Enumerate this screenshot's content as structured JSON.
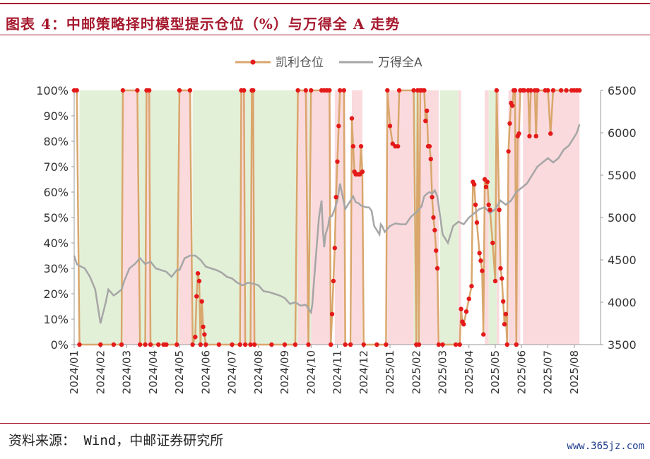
{
  "header": {
    "title": "图表 4：中邮策略择时模型提示仓位（%）与万得全 A 走势"
  },
  "footer": {
    "source": "资料来源：  Wind，中邮证券研究所",
    "watermark": "www.365jz.com"
  },
  "colors": {
    "position_line": "#d9a66c",
    "position_dot": "#e41a1a",
    "index_line": "#a6a6a6",
    "bull_zone": "#fadadd",
    "bear_zone": "#e3f0d8",
    "brand": "#a6192e"
  },
  "chart_data": {
    "type": "line",
    "title": "",
    "grid": false,
    "legend_position": "top-center",
    "x_ticks": [
      "2024/01",
      "2024/02",
      "2024/03",
      "2024/04",
      "2024/05",
      "2024/06",
      "2024/07",
      "2024/08",
      "2024/09",
      "2024/10",
      "2024/11",
      "2024/12",
      "2025/01",
      "2025/02",
      "2025/03",
      "2025/04",
      "2025/05",
      "2025/06",
      "2025/07",
      "2025/08"
    ],
    "x_range": [
      "2024/01",
      "2025/08 end"
    ],
    "y_left": {
      "ticks": [
        "0%",
        "10%",
        "20%",
        "30%",
        "40%",
        "50%",
        "60%",
        "70%",
        "80%",
        "90%",
        "100%"
      ],
      "range": [
        0,
        100
      ]
    },
    "y_right": {
      "ticks": [
        "3500",
        "4000",
        "4500",
        "5000",
        "5500",
        "6000",
        "6500"
      ],
      "range": [
        3500,
        6500
      ]
    },
    "series": [
      {
        "name": "凯利仓位",
        "axis": "left",
        "points": [
          [
            0,
            100
          ],
          [
            0.1,
            100
          ],
          [
            0.2,
            0
          ],
          [
            1,
            0
          ],
          [
            1.5,
            0
          ],
          [
            1.8,
            0
          ],
          [
            1.85,
            100
          ],
          [
            2.4,
            100
          ],
          [
            2.5,
            0
          ],
          [
            2.7,
            0
          ],
          [
            2.75,
            100
          ],
          [
            2.85,
            100
          ],
          [
            2.9,
            0
          ],
          [
            3.2,
            0
          ],
          [
            3.4,
            0
          ],
          [
            3.5,
            0
          ],
          [
            3.9,
            0
          ],
          [
            4.0,
            100
          ],
          [
            4.4,
            100
          ],
          [
            4.5,
            0
          ],
          [
            4.6,
            3
          ],
          [
            4.65,
            19
          ],
          [
            4.7,
            28
          ],
          [
            4.75,
            25
          ],
          [
            4.8,
            0
          ],
          [
            4.85,
            17
          ],
          [
            4.9,
            7
          ],
          [
            4.95,
            4
          ],
          [
            5.0,
            0
          ],
          [
            5.5,
            0
          ],
          [
            6.0,
            0
          ],
          [
            6.3,
            0
          ],
          [
            6.35,
            100
          ],
          [
            6.45,
            100
          ],
          [
            6.5,
            0
          ],
          [
            6.7,
            0
          ],
          [
            6.75,
            100
          ],
          [
            6.8,
            100
          ],
          [
            6.85,
            0
          ],
          [
            7.5,
            0
          ],
          [
            8.0,
            0
          ],
          [
            8.4,
            0
          ],
          [
            8.5,
            100
          ],
          [
            8.8,
            100
          ],
          [
            8.9,
            0
          ],
          [
            9.0,
            100
          ],
          [
            9.4,
            100
          ],
          [
            9.5,
            100
          ],
          [
            9.6,
            100
          ],
          [
            9.7,
            100
          ],
          [
            9.75,
            0
          ],
          [
            9.8,
            12
          ],
          [
            9.85,
            25
          ],
          [
            9.9,
            38
          ],
          [
            9.95,
            58
          ],
          [
            10.0,
            72
          ],
          [
            10.05,
            86
          ],
          [
            10.1,
            100
          ],
          [
            10.25,
            100
          ],
          [
            10.3,
            0
          ],
          [
            10.5,
            0
          ],
          [
            10.55,
            89
          ],
          [
            10.6,
            78
          ],
          [
            10.65,
            68
          ],
          [
            10.7,
            67
          ],
          [
            10.8,
            67
          ],
          [
            10.85,
            67
          ],
          [
            10.9,
            78
          ],
          [
            10.95,
            68
          ],
          [
            11.0,
            0
          ],
          [
            11.5,
            0
          ],
          [
            11.85,
            0
          ],
          [
            11.9,
            100
          ],
          [
            12.0,
            86
          ],
          [
            12.1,
            79
          ],
          [
            12.2,
            78
          ],
          [
            12.3,
            78
          ],
          [
            12.35,
            100
          ],
          [
            12.9,
            100
          ],
          [
            13.0,
            0
          ],
          [
            13.05,
            100
          ],
          [
            13.1,
            0
          ],
          [
            13.15,
            100
          ],
          [
            13.2,
            100
          ],
          [
            13.3,
            100
          ],
          [
            13.35,
            88
          ],
          [
            13.4,
            92
          ],
          [
            13.45,
            78
          ],
          [
            13.5,
            78
          ],
          [
            13.55,
            73
          ],
          [
            13.6,
            58
          ],
          [
            13.65,
            50
          ],
          [
            13.7,
            45
          ],
          [
            13.75,
            37
          ],
          [
            13.8,
            30
          ],
          [
            13.85,
            0
          ],
          [
            14.0,
            0
          ],
          [
            14.5,
            0
          ],
          [
            14.65,
            0
          ],
          [
            14.7,
            14
          ],
          [
            14.75,
            9
          ],
          [
            14.8,
            8
          ],
          [
            14.9,
            13
          ],
          [
            15.0,
            18
          ],
          [
            15.1,
            23
          ],
          [
            15.15,
            64
          ],
          [
            15.2,
            63
          ],
          [
            15.25,
            55
          ],
          [
            15.3,
            48
          ],
          [
            15.4,
            36
          ],
          [
            15.45,
            33
          ],
          [
            15.5,
            29
          ],
          [
            15.55,
            4
          ],
          [
            15.6,
            65
          ],
          [
            15.65,
            62
          ],
          [
            15.7,
            64
          ],
          [
            15.75,
            55
          ],
          [
            15.8,
            53
          ],
          [
            15.9,
            40
          ],
          [
            16.0,
            25
          ],
          [
            16.05,
            100
          ],
          [
            16.15,
            53
          ],
          [
            16.2,
            30
          ],
          [
            16.25,
            26
          ],
          [
            16.3,
            17
          ],
          [
            16.35,
            8
          ],
          [
            16.4,
            12
          ],
          [
            16.45,
            0
          ],
          [
            16.5,
            76
          ],
          [
            16.55,
            87
          ],
          [
            16.6,
            95
          ],
          [
            16.65,
            94
          ],
          [
            16.7,
            100
          ],
          [
            16.75,
            100
          ],
          [
            16.8,
            0
          ],
          [
            16.85,
            82
          ],
          [
            16.9,
            83
          ],
          [
            16.95,
            100
          ],
          [
            17.05,
            100
          ],
          [
            17.1,
            100
          ],
          [
            17.25,
            100
          ],
          [
            17.3,
            82
          ],
          [
            17.35,
            100
          ],
          [
            17.5,
            100
          ],
          [
            17.55,
            82
          ],
          [
            17.6,
            100
          ],
          [
            17.9,
            100
          ],
          [
            18.0,
            100
          ],
          [
            18.1,
            83
          ],
          [
            18.2,
            100
          ],
          [
            18.5,
            100
          ],
          [
            18.7,
            100
          ],
          [
            18.9,
            100
          ],
          [
            19.0,
            100
          ],
          [
            19.1,
            100
          ],
          [
            19.2,
            100
          ]
        ]
      },
      {
        "name": "万得全A",
        "axis": "right",
        "points": [
          [
            0,
            4550
          ],
          [
            0.1,
            4450
          ],
          [
            0.2,
            4430
          ],
          [
            0.4,
            4400
          ],
          [
            0.6,
            4300
          ],
          [
            0.8,
            4150
          ],
          [
            1.0,
            3750
          ],
          [
            1.2,
            4000
          ],
          [
            1.3,
            4150
          ],
          [
            1.5,
            4080
          ],
          [
            1.6,
            4100
          ],
          [
            1.8,
            4150
          ],
          [
            1.9,
            4250
          ],
          [
            2.1,
            4400
          ],
          [
            2.3,
            4450
          ],
          [
            2.5,
            4520
          ],
          [
            2.7,
            4450
          ],
          [
            2.9,
            4480
          ],
          [
            3.1,
            4400
          ],
          [
            3.3,
            4380
          ],
          [
            3.5,
            4360
          ],
          [
            3.7,
            4300
          ],
          [
            3.9,
            4380
          ],
          [
            4.0,
            4380
          ],
          [
            4.2,
            4520
          ],
          [
            4.4,
            4550
          ],
          [
            4.6,
            4550
          ],
          [
            4.8,
            4500
          ],
          [
            5.0,
            4420
          ],
          [
            5.2,
            4400
          ],
          [
            5.4,
            4380
          ],
          [
            5.6,
            4350
          ],
          [
            5.8,
            4300
          ],
          [
            6.0,
            4280
          ],
          [
            6.2,
            4230
          ],
          [
            6.4,
            4200
          ],
          [
            6.6,
            4230
          ],
          [
            6.8,
            4220
          ],
          [
            7.0,
            4200
          ],
          [
            7.2,
            4130
          ],
          [
            7.4,
            4120
          ],
          [
            7.6,
            4100
          ],
          [
            7.8,
            4080
          ],
          [
            8.0,
            4050
          ],
          [
            8.2,
            3980
          ],
          [
            8.4,
            4000
          ],
          [
            8.6,
            3960
          ],
          [
            8.8,
            3970
          ],
          [
            9.0,
            3880
          ],
          [
            9.05,
            3980
          ],
          [
            9.1,
            4200
          ],
          [
            9.2,
            4600
          ],
          [
            9.3,
            5000
          ],
          [
            9.4,
            5200
          ],
          [
            9.45,
            4850
          ],
          [
            9.5,
            4650
          ],
          [
            9.55,
            4800
          ],
          [
            9.65,
            4900
          ],
          [
            9.7,
            5000
          ],
          [
            9.8,
            5020
          ],
          [
            9.9,
            5100
          ],
          [
            10.0,
            5200
          ],
          [
            10.1,
            5400
          ],
          [
            10.2,
            5250
          ],
          [
            10.3,
            5100
          ],
          [
            10.5,
            5200
          ],
          [
            10.6,
            5250
          ],
          [
            10.7,
            5180
          ],
          [
            10.8,
            5170
          ],
          [
            10.9,
            5140
          ],
          [
            11.0,
            5130
          ],
          [
            11.1,
            5120
          ],
          [
            11.2,
            5120
          ],
          [
            11.3,
            5080
          ],
          [
            11.4,
            4900
          ],
          [
            11.5,
            4850
          ],
          [
            11.6,
            4800
          ],
          [
            11.65,
            4920
          ],
          [
            11.7,
            4900
          ],
          [
            11.8,
            4830
          ],
          [
            12.0,
            4900
          ],
          [
            12.2,
            4930
          ],
          [
            12.4,
            4920
          ],
          [
            12.6,
            4920
          ],
          [
            12.8,
            5010
          ],
          [
            13.0,
            5060
          ],
          [
            13.2,
            5130
          ],
          [
            13.3,
            5250
          ],
          [
            13.4,
            5280
          ],
          [
            13.5,
            5300
          ],
          [
            13.6,
            5280
          ],
          [
            13.7,
            5320
          ],
          [
            13.8,
            5250
          ],
          [
            14.0,
            4800
          ],
          [
            14.2,
            4700
          ],
          [
            14.4,
            4900
          ],
          [
            14.6,
            4950
          ],
          [
            14.8,
            4920
          ],
          [
            15.0,
            5000
          ],
          [
            15.2,
            5050
          ],
          [
            15.4,
            5100
          ],
          [
            15.6,
            5120
          ],
          [
            15.8,
            5050
          ],
          [
            16.0,
            5100
          ],
          [
            16.2,
            5200
          ],
          [
            16.4,
            5150
          ],
          [
            16.6,
            5200
          ],
          [
            16.8,
            5300
          ],
          [
            17.0,
            5350
          ],
          [
            17.2,
            5400
          ],
          [
            17.4,
            5500
          ],
          [
            17.6,
            5600
          ],
          [
            17.8,
            5650
          ],
          [
            18.0,
            5700
          ],
          [
            18.2,
            5650
          ],
          [
            18.4,
            5700
          ],
          [
            18.6,
            5800
          ],
          [
            18.8,
            5850
          ],
          [
            19.0,
            5950
          ],
          [
            19.1,
            6000
          ],
          [
            19.2,
            6100
          ]
        ]
      }
    ],
    "shaded_regions": {
      "pink": [
        [
          1.85,
          2.45
        ],
        [
          2.75,
          2.9
        ],
        [
          4.0,
          4.45
        ],
        [
          6.35,
          6.5
        ],
        [
          6.75,
          6.85
        ],
        [
          8.5,
          8.9
        ],
        [
          9.0,
          9.75
        ],
        [
          9.9,
          10.3
        ],
        [
          10.55,
          10.95
        ],
        [
          11.9,
          12.9
        ],
        [
          13.15,
          13.85
        ],
        [
          14.6,
          14.7
        ],
        [
          15.6,
          15.75
        ],
        [
          16.05,
          16.15
        ],
        [
          16.5,
          16.95
        ],
        [
          17.05,
          19.2
        ]
      ],
      "green": [
        [
          0.2,
          1.85
        ],
        [
          2.45,
          2.75
        ],
        [
          2.9,
          4.0
        ],
        [
          4.5,
          6.35
        ],
        [
          6.5,
          6.75
        ],
        [
          6.85,
          8.5
        ],
        [
          8.9,
          9.0
        ],
        [
          12.9,
          13.1
        ],
        [
          13.9,
          14.6
        ],
        [
          15.75,
          16.05
        ]
      ]
    }
  }
}
